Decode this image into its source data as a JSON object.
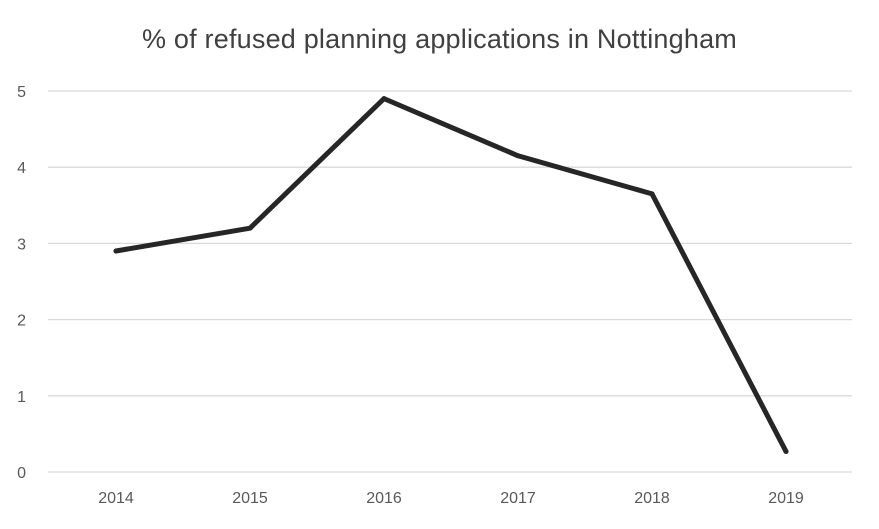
{
  "chart_data": {
    "type": "line",
    "title": "% of refused planning applications in Nottingham",
    "xlabel": "",
    "ylabel": "",
    "categories": [
      "2014",
      "2015",
      "2016",
      "2017",
      "2018",
      "2019"
    ],
    "series": [
      {
        "name": "% of refused planning applications",
        "values": [
          2.9,
          3.2,
          4.9,
          4.15,
          3.65,
          0.27
        ]
      }
    ],
    "ylim": [
      0,
      5
    ],
    "yticks": [
      0,
      1,
      2,
      3,
      4,
      5
    ],
    "grid": true,
    "legend": "none",
    "colors": {
      "line": "#262626",
      "grid": "#d9d9d9",
      "axis": "#d9d9d9",
      "text": "#595959",
      "title": "#404040"
    }
  }
}
